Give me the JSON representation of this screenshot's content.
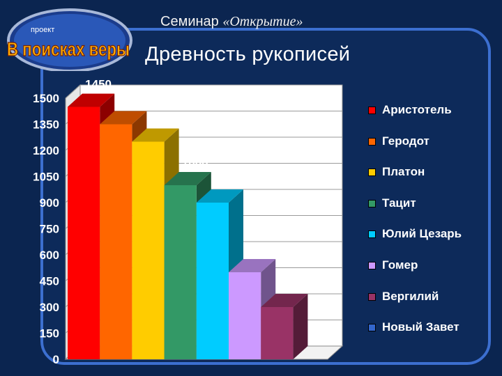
{
  "header": {
    "seminar_prefix": "Семинар ",
    "seminar_name": "«Открытие»",
    "logo_small": "проект",
    "logo_text": "В поисках веры",
    "title": "Древность рукописей"
  },
  "colors": {
    "background": "#0b2550",
    "frame": "#3c6fd0",
    "plot_face": "#ffffff"
  },
  "chart_data": {
    "type": "bar",
    "title": "Древность рукописей",
    "xlabel": "",
    "ylabel": "",
    "ylim": [
      0,
      1500
    ],
    "yticks": [
      0,
      150,
      300,
      450,
      600,
      750,
      900,
      1050,
      1200,
      1350,
      1500
    ],
    "grid": true,
    "legend_position": "right",
    "categories": [
      "Аристотель",
      "Геродот",
      "Платон",
      "Тацит",
      "Юлий Цезарь",
      "Гомер",
      "Вергилий",
      "Новый Завет"
    ],
    "values": [
      1450,
      1350,
      1250,
      1000,
      900,
      500,
      300,
      0
    ],
    "data_labels": [
      "1450",
      "1350",
      "1250",
      "1000",
      "900",
      "500",
      "300",
      ""
    ],
    "series_colors": [
      "#ff0000",
      "#ff6600",
      "#ffcc00",
      "#339966",
      "#00ccff",
      "#cc99ff",
      "#993366",
      "#3366cc"
    ]
  }
}
